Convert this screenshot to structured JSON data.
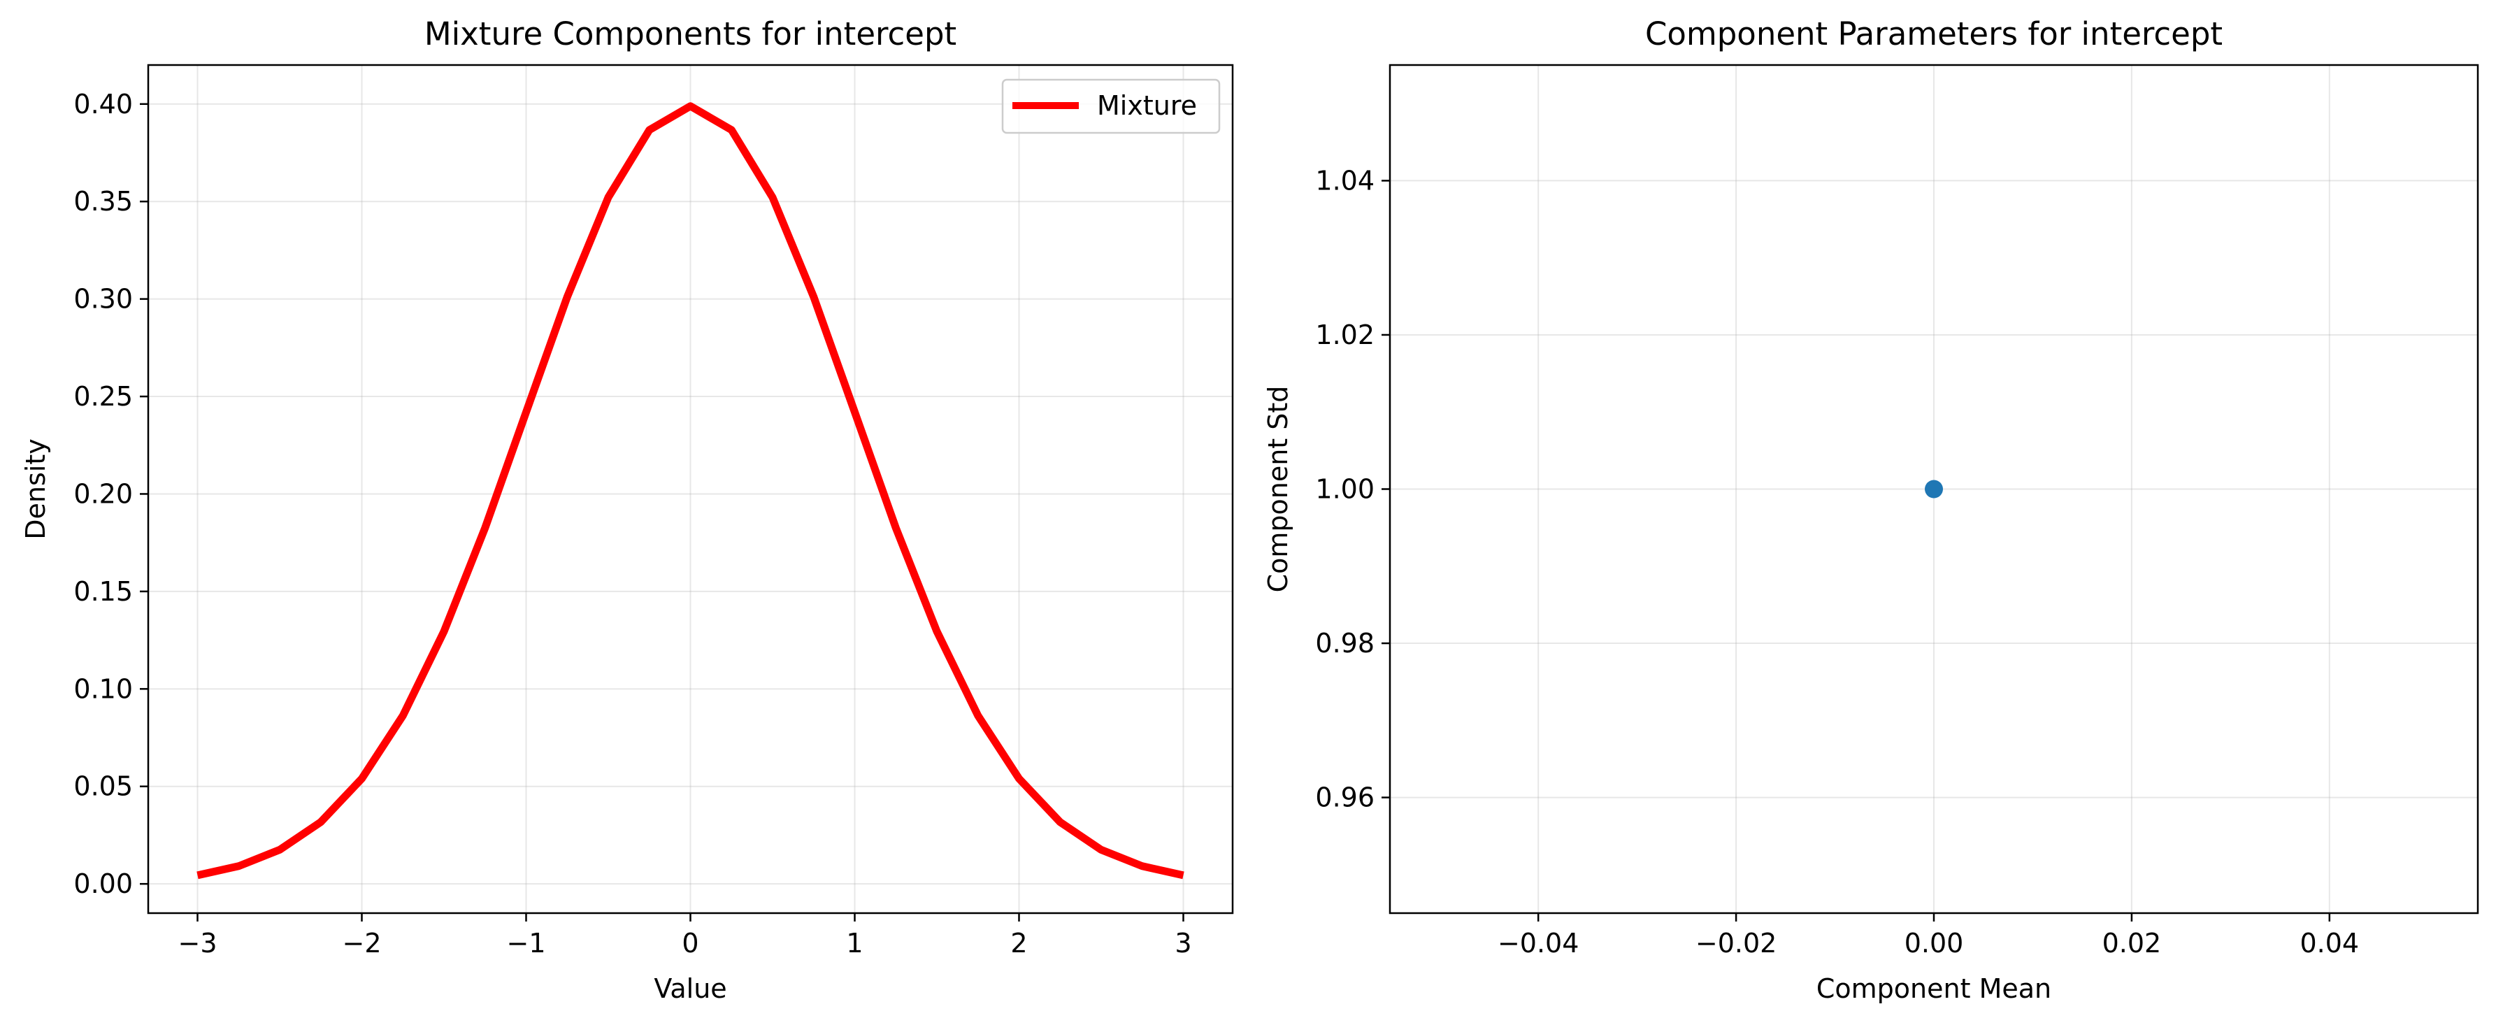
{
  "chart_data": [
    {
      "type": "line",
      "title": "Mixture Components for intercept",
      "xlabel": "Value",
      "ylabel": "Density",
      "xlim": [
        -3.3,
        3.3
      ],
      "ylim": [
        -0.015,
        0.42
      ],
      "xticks": [
        -3,
        -2,
        -1,
        0,
        1,
        2,
        3
      ],
      "xtick_labels": [
        "−3",
        "−2",
        "−1",
        "0",
        "1",
        "2",
        "3"
      ],
      "yticks": [
        0.0,
        0.05,
        0.1,
        0.15,
        0.2,
        0.25,
        0.3,
        0.35,
        0.4
      ],
      "ytick_labels": [
        "0.00",
        "0.05",
        "0.10",
        "0.15",
        "0.20",
        "0.25",
        "0.30",
        "0.35",
        "0.40"
      ],
      "grid": true,
      "legend_position": "top-right",
      "series": [
        {
          "name": "Mixture",
          "color": "#ff0000",
          "x": [
            -3,
            -2.75,
            -2.5,
            -2.25,
            -2,
            -1.75,
            -1.5,
            -1.25,
            -1,
            -0.75,
            -0.5,
            -0.25,
            0,
            0.25,
            0.5,
            0.75,
            1,
            1.25,
            1.5,
            1.75,
            2,
            2.25,
            2.5,
            2.75,
            3
          ],
          "y": [
            0.0044,
            0.0091,
            0.0175,
            0.0317,
            0.054,
            0.0863,
            0.1295,
            0.1826,
            0.242,
            0.3011,
            0.3521,
            0.3867,
            0.3989,
            0.3867,
            0.3521,
            0.3011,
            0.242,
            0.1826,
            0.1295,
            0.0863,
            0.054,
            0.0317,
            0.0175,
            0.0091,
            0.0044
          ]
        }
      ]
    },
    {
      "type": "scatter",
      "title": "Component Parameters for intercept",
      "xlabel": "Component Mean",
      "ylabel": "Component Std",
      "xlim": [
        -0.055,
        0.055
      ],
      "ylim": [
        0.945,
        1.055
      ],
      "xticks": [
        -0.04,
        -0.02,
        0.0,
        0.02,
        0.04
      ],
      "xtick_labels": [
        "−0.04",
        "−0.02",
        "0.00",
        "0.02",
        "0.04"
      ],
      "yticks": [
        0.96,
        0.98,
        1.0,
        1.02,
        1.04
      ],
      "ytick_labels": [
        "0.96",
        "0.98",
        "1.00",
        "1.02",
        "1.04"
      ],
      "grid": true,
      "series": [
        {
          "color": "#1f77b4",
          "x": [
            0.0
          ],
          "y": [
            1.0
          ]
        }
      ]
    }
  ]
}
